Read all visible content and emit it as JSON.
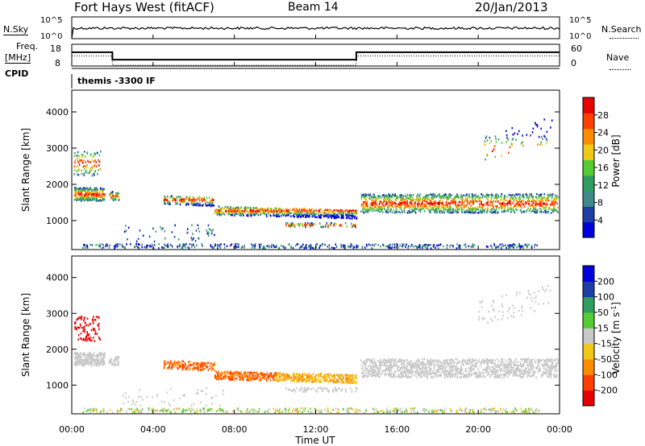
{
  "header": {
    "station": "Fort Hays West (fitACF)",
    "beam": "Beam 14",
    "date": "20/Jan/2013"
  },
  "noise_panel": {
    "left_label": "N.Sky",
    "right_label": "N.Search",
    "left_ticks": [
      "10^5",
      "10^0"
    ],
    "right_ticks": [
      "10^5",
      "10^0"
    ]
  },
  "freq_panel": {
    "left_label_1": "Freq.",
    "left_label_2": "[MHz]",
    "left_ticks": [
      "18",
      "8"
    ],
    "right_label": "Nave",
    "right_ticks": [
      "60",
      "0"
    ],
    "cpid_label": "CPID",
    "cpid_value": "themis -3300 IF"
  },
  "colors": {
    "power_scale": [
      "#0000dd",
      "#1e3fa5",
      "#3f8a8a",
      "#2f9f5f",
      "#55cc33",
      "#f0c818",
      "#ff8c00",
      "#ff4000",
      "#e80000"
    ],
    "velocity_scale": [
      "#e80000",
      "#ff4000",
      "#ff8c00",
      "#f0c818",
      "#c8c8c8",
      "#55cc33",
      "#2f9f5f",
      "#1e3fa5",
      "#0000dd"
    ]
  },
  "chart_data": [
    {
      "type": "heatmap",
      "quantity": "Power",
      "ylabel": "Slant Range [km]",
      "ylim": [
        200,
        4600
      ],
      "y_ticks": [
        1000,
        2000,
        3000,
        4000
      ],
      "colorbar_label": "Power [dB]",
      "colorbar_ticks": [
        4,
        8,
        12,
        16,
        20,
        24,
        28
      ],
      "colorbar_range": [
        0,
        32
      ]
    },
    {
      "type": "heatmap",
      "quantity": "Velocity",
      "ylabel": "Slant Range [km]",
      "ylim": [
        200,
        4600
      ],
      "y_ticks": [
        1000,
        2000,
        3000,
        4000
      ],
      "colorbar_label": "Velocity [m s^-1]",
      "colorbar_ticks": [
        "200",
        "100",
        "50",
        "15",
        "-15",
        "-50",
        "-100",
        "-200"
      ]
    }
  ],
  "x_axis": {
    "label": "Time UT",
    "ticks": [
      "00:00",
      "04:00",
      "08:00",
      "12:00",
      "16:00",
      "20:00",
      "00:00"
    ],
    "range_hours": [
      0,
      24
    ]
  }
}
